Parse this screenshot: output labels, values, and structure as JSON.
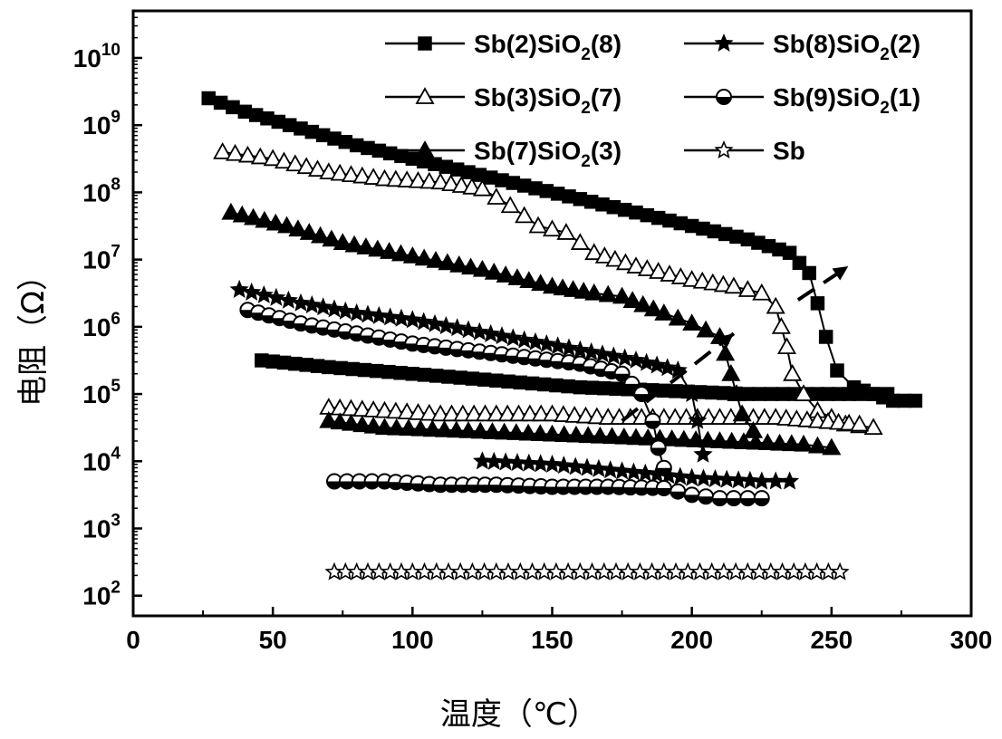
{
  "chart_data": {
    "type": "scatter",
    "xlabel": "温度（℃）",
    "ylabel": "电阻（Ω）",
    "xlim": [
      0,
      300
    ],
    "ylim_log10": [
      1.7,
      10.7
    ],
    "y_scale": "log",
    "x_ticks": [
      "0",
      "50",
      "100",
      "150",
      "200",
      "250",
      "300"
    ],
    "y_ticks": [
      {
        "base": "10",
        "exp": "2",
        "value": 2
      },
      {
        "base": "10",
        "exp": "3",
        "value": 3
      },
      {
        "base": "10",
        "exp": "4",
        "value": 4
      },
      {
        "base": "10",
        "exp": "5",
        "value": 5
      },
      {
        "base": "10",
        "exp": "6",
        "value": 6
      },
      {
        "base": "10",
        "exp": "7",
        "value": 7
      },
      {
        "base": "10",
        "exp": "8",
        "value": 8
      },
      {
        "base": "10",
        "exp": "9",
        "value": 9
      },
      {
        "base": "10",
        "exp": "10",
        "value": 10
      }
    ],
    "legend_position": "top-right",
    "series": [
      {
        "name": "Sb(2)SiO2(8)",
        "marker": "square",
        "filled": true,
        "legend": {
          "pre": "Sb(2)SiO",
          "sub": "2",
          "post": "(8)"
        },
        "x": [
          27,
          40,
          60,
          80,
          100,
          120,
          140,
          160,
          180,
          200,
          220,
          235,
          242,
          245,
          248,
          252,
          258,
          265,
          272,
          280
        ],
        "y": [
          9.4,
          9.2,
          8.95,
          8.7,
          8.5,
          8.3,
          8.1,
          7.9,
          7.7,
          7.5,
          7.3,
          7.1,
          6.8,
          6.35,
          5.85,
          5.35,
          5.1,
          5.0,
          4.9,
          4.9
        ],
        "cool_x": [
          46,
          70,
          100,
          130,
          160,
          190,
          220,
          245,
          260,
          270
        ],
        "cool_y": [
          5.5,
          5.4,
          5.3,
          5.2,
          5.1,
          5.05,
          5.0,
          5.0,
          5.0,
          5.0
        ]
      },
      {
        "name": "Sb(3)SiO2(7)",
        "marker": "triangle",
        "filled": false,
        "legend": {
          "pre": "Sb(3)SiO",
          "sub": "2",
          "post": "(7)"
        },
        "x": [
          32,
          50,
          70,
          90,
          110,
          125,
          135,
          145,
          155,
          165,
          180,
          200,
          215,
          225,
          230,
          232,
          234,
          236,
          240,
          245,
          255,
          265
        ],
        "y": [
          8.6,
          8.5,
          8.3,
          8.2,
          8.15,
          8.05,
          7.8,
          7.5,
          7.4,
          7.1,
          6.9,
          6.7,
          6.6,
          6.5,
          6.3,
          6.0,
          5.7,
          5.3,
          5.0,
          4.75,
          4.55,
          4.5
        ],
        "cool_x": [
          70,
          90,
          110,
          130,
          150,
          170,
          190,
          210,
          230,
          245,
          260
        ],
        "cool_y": [
          4.8,
          4.75,
          4.7,
          4.7,
          4.7,
          4.65,
          4.65,
          4.65,
          4.65,
          4.6,
          4.55
        ]
      },
      {
        "name": "Sb(7)SiO2(3)",
        "marker": "triangle",
        "filled": true,
        "legend": {
          "pre": "Sb(7)SiO",
          "sub": "2",
          "post": "(3)"
        },
        "x": [
          35,
          55,
          75,
          100,
          125,
          150,
          165,
          175,
          190,
          200,
          210,
          212,
          214,
          216,
          218,
          222
        ],
        "y": [
          7.7,
          7.5,
          7.25,
          7.05,
          6.85,
          6.6,
          6.5,
          6.45,
          6.2,
          6.05,
          5.85,
          5.6,
          5.3,
          5.0,
          4.7,
          4.45
        ],
        "cool_x": [
          70,
          90,
          120,
          150,
          180,
          210,
          240,
          250
        ],
        "cool_y": [
          4.6,
          4.5,
          4.45,
          4.4,
          4.35,
          4.3,
          4.25,
          4.2
        ]
      },
      {
        "name": "Sb(8)SiO2(2)",
        "marker": "star",
        "filled": true,
        "legend": {
          "pre": "Sb(8)SiO",
          "sub": "2",
          "post": "(2)"
        },
        "x": [
          38,
          60,
          80,
          100,
          120,
          140,
          160,
          180,
          195,
          200,
          202,
          204
        ],
        "y": [
          6.55,
          6.35,
          6.2,
          6.1,
          5.95,
          5.8,
          5.65,
          5.5,
          5.35,
          5.0,
          4.6,
          4.1
        ],
        "cool_x": [
          125,
          150,
          175,
          200,
          225,
          235
        ],
        "cool_y": [
          4.0,
          3.95,
          3.85,
          3.75,
          3.7,
          3.7
        ]
      },
      {
        "name": "Sb(9)SiO2(1)",
        "marker": "circle-half",
        "filled": false,
        "legend": {
          "pre": "Sb(9)SiO",
          "sub": "2",
          "post": "(1)"
        },
        "x": [
          41,
          60,
          80,
          100,
          120,
          140,
          160,
          175,
          182,
          186,
          188,
          190
        ],
        "y": [
          6.25,
          6.05,
          5.9,
          5.75,
          5.65,
          5.55,
          5.45,
          5.3,
          5.0,
          4.6,
          4.2,
          3.9
        ],
        "cool_x": [
          72,
          90,
          110,
          130,
          150,
          170,
          190,
          200,
          210,
          220,
          225
        ],
        "cool_y": [
          3.7,
          3.7,
          3.65,
          3.65,
          3.62,
          3.62,
          3.6,
          3.5,
          3.45,
          3.45,
          3.45
        ]
      },
      {
        "name": "Sb",
        "marker": "star",
        "filled": false,
        "legend": {
          "pre": "Sb",
          "sub": "",
          "post": ""
        },
        "x": [
          72,
          100,
          130,
          160,
          190,
          220,
          253
        ],
        "y": [
          2.35,
          2.35,
          2.35,
          2.35,
          2.35,
          2.35,
          2.35
        ],
        "cool_x": [],
        "cool_y": []
      }
    ]
  }
}
